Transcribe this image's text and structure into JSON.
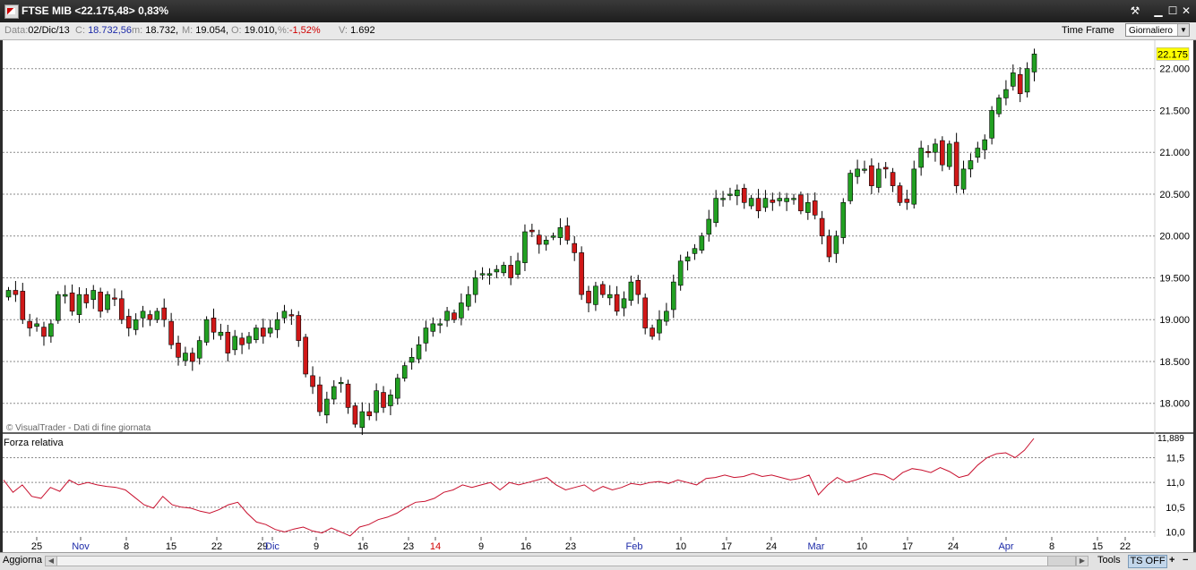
{
  "window": {
    "title": "FTSE MIB <22.175,48> 0,83%",
    "buttons": [
      "tool-icon",
      "minimize-icon",
      "maximize-icon",
      "close-icon"
    ]
  },
  "infobar": {
    "data_label": "Data:",
    "data_value": "02/Dic/13",
    "c_label": "C:",
    "c_value": "18.732,56",
    "m_label": "m:",
    "m_value": "18.732,",
    "M_label": "M:",
    "M_value": "19.054,",
    "o_label": "O:",
    "o_value": "19.010,",
    "pct_label": "%:",
    "pct_value": "-1,52%",
    "v_label": "V:",
    "v_value": "1.692",
    "time_frame_label": "Time Frame",
    "time_frame_value": "Giornaliero"
  },
  "colors": {
    "up": "#22a022",
    "down": "#d01818",
    "indicator_line": "#c8102e",
    "grid": "#8a8a8a",
    "last_price_bg": "#ffff00"
  },
  "chart_data": [
    {
      "type": "candlestick",
      "copyright": "© VisualTrader - Dati di fine giornata",
      "last_price_label": "22.175",
      "y_ticks": [
        "22.000",
        "21.500",
        "21.000",
        "20.500",
        "20.000",
        "19.500",
        "19.000",
        "18.500",
        "18.000"
      ],
      "ylim": [
        17.7,
        22.4
      ],
      "close": [
        19.35,
        19.3,
        19.0,
        18.9,
        18.95,
        18.8,
        18.95,
        19.3,
        19.3,
        19.1,
        19.3,
        19.2,
        19.35,
        19.1,
        19.3,
        19.25,
        19.0,
        18.9,
        19.0,
        19.1,
        19.0,
        19.1,
        19.0,
        18.7,
        18.55,
        18.6,
        18.5,
        18.75,
        19.0,
        18.85,
        18.85,
        18.6,
        18.8,
        18.7,
        18.8,
        18.9,
        18.8,
        18.9,
        19.0,
        19.1,
        19.05,
        18.75,
        18.35,
        18.2,
        17.9,
        18.05,
        18.2,
        18.25,
        17.95,
        17.75,
        17.9,
        17.85,
        18.15,
        17.95,
        18.1,
        18.3,
        18.45,
        18.55,
        18.7,
        18.9,
        18.95,
        18.95,
        19.1,
        19.0,
        19.2,
        19.3,
        19.5,
        19.55,
        19.55,
        19.6,
        19.65,
        19.5,
        19.7,
        20.05,
        20.05,
        19.9,
        19.95,
        20.0,
        20.1,
        19.95,
        19.8,
        19.3,
        19.2,
        19.4,
        19.3,
        19.3,
        19.1,
        19.25,
        19.45,
        19.3,
        18.9,
        18.8,
        19.0,
        19.1,
        19.45,
        19.7,
        19.75,
        19.85,
        20.0,
        20.2,
        20.45,
        20.45,
        20.5,
        20.55,
        20.4,
        20.45,
        20.3,
        20.45,
        20.4,
        20.45,
        20.45,
        20.45,
        20.3,
        20.4,
        20.25,
        20.0,
        19.75,
        20.0,
        20.4,
        20.75,
        20.8,
        20.8,
        20.6,
        20.8,
        20.8,
        20.6,
        20.4,
        20.4,
        20.8,
        21.05,
        21.0,
        21.1,
        20.85,
        21.1,
        20.6,
        20.8,
        20.9,
        21.05,
        21.15,
        21.5,
        21.65,
        21.75,
        21.95,
        21.7,
        22.0,
        22.175
      ],
      "x_labels": [
        {
          "text": "25",
          "color": "#000000"
        },
        {
          "text": "Nov",
          "color": "#1c2aa8"
        },
        {
          "text": "8",
          "color": "#000000"
        },
        {
          "text": "15",
          "color": "#000000"
        },
        {
          "text": "22",
          "color": "#000000"
        },
        {
          "text": "29",
          "color": "#000000"
        },
        {
          "text": "Dic",
          "color": "#1c2aa8"
        },
        {
          "text": "9",
          "color": "#000000"
        },
        {
          "text": "16",
          "color": "#000000"
        },
        {
          "text": "23",
          "color": "#000000"
        },
        {
          "text": "14",
          "color": "#d00000"
        },
        {
          "text": "9",
          "color": "#000000"
        },
        {
          "text": "16",
          "color": "#000000"
        },
        {
          "text": "23",
          "color": "#000000"
        },
        {
          "text": "Feb",
          "color": "#1c2aa8"
        },
        {
          "text": "10",
          "color": "#000000"
        },
        {
          "text": "17",
          "color": "#000000"
        },
        {
          "text": "24",
          "color": "#000000"
        },
        {
          "text": "Mar",
          "color": "#1c2aa8"
        },
        {
          "text": "10",
          "color": "#000000"
        },
        {
          "text": "17",
          "color": "#000000"
        },
        {
          "text": "24",
          "color": "#000000"
        },
        {
          "text": "Apr",
          "color": "#1c2aa8"
        },
        {
          "text": "8",
          "color": "#000000"
        },
        {
          "text": "15",
          "color": "#000000"
        },
        {
          "text": "22",
          "color": "#000000"
        }
      ]
    },
    {
      "type": "line",
      "title": "Forza relativa",
      "last_value_label": "11,889",
      "y_ticks": [
        "11,5",
        "11,0",
        "10,5",
        "10,0"
      ],
      "ylim": [
        9.9,
        11.9
      ],
      "values": [
        11.05,
        10.8,
        10.95,
        10.72,
        10.68,
        10.9,
        10.82,
        11.05,
        10.95,
        11.0,
        10.95,
        10.92,
        10.9,
        10.85,
        10.7,
        10.55,
        10.48,
        10.72,
        10.55,
        10.5,
        10.48,
        10.42,
        10.38,
        10.45,
        10.55,
        10.6,
        10.38,
        10.2,
        10.15,
        10.05,
        10.0,
        10.06,
        10.1,
        10.02,
        9.98,
        10.08,
        10.0,
        9.92,
        10.1,
        10.15,
        10.25,
        10.3,
        10.38,
        10.5,
        10.6,
        10.62,
        10.68,
        10.8,
        10.85,
        10.95,
        10.9,
        10.95,
        11.0,
        10.85,
        11.0,
        10.95,
        11.0,
        11.05,
        11.1,
        10.95,
        10.85,
        10.9,
        10.95,
        10.82,
        10.92,
        10.85,
        10.9,
        10.98,
        10.95,
        11.0,
        11.02,
        10.98,
        11.05,
        11.0,
        10.95,
        11.08,
        11.1,
        11.15,
        11.1,
        11.12,
        11.18,
        11.12,
        11.15,
        11.1,
        11.05,
        11.08,
        11.15,
        10.75,
        10.95,
        11.1,
        11.0,
        11.05,
        11.12,
        11.18,
        11.15,
        11.05,
        11.2,
        11.28,
        11.25,
        11.2,
        11.3,
        11.22,
        11.1,
        11.15,
        11.35,
        11.5,
        11.58,
        11.6,
        11.5,
        11.65,
        11.889
      ]
    }
  ],
  "bottombar": {
    "refresh_label": "Aggiorna",
    "tools_label": "Tools",
    "tsoff_label": "TS OFF",
    "plus_label": "+",
    "minus_label": "−"
  }
}
